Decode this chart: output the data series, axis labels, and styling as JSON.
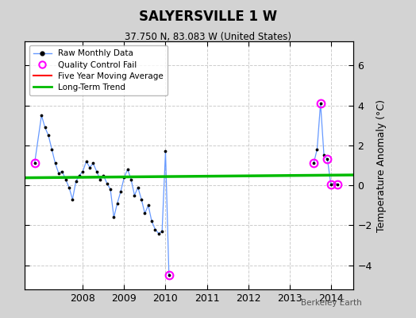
{
  "title": "SALYERSVILLE 1 W",
  "subtitle": "37.750 N, 83.083 W (United States)",
  "ylabel": "Temperature Anomaly (°C)",
  "watermark": "Berkeley Earth",
  "background_color": "#d3d3d3",
  "plot_bg_color": "#ffffff",
  "xlim": [
    2006.6,
    2014.55
  ],
  "ylim": [
    -5.2,
    7.2
  ],
  "yticks": [
    -4,
    -2,
    0,
    2,
    4,
    6
  ],
  "xticks": [
    2008,
    2009,
    2010,
    2011,
    2012,
    2013,
    2014
  ],
  "segment1": {
    "x": [
      2006.833,
      2007.0,
      2007.083,
      2007.167,
      2007.25,
      2007.333,
      2007.417,
      2007.5,
      2007.583,
      2007.667,
      2007.75,
      2007.833,
      2007.917,
      2008.0,
      2008.083,
      2008.167,
      2008.25,
      2008.333,
      2008.417,
      2008.5,
      2008.583,
      2008.667,
      2008.75,
      2008.833,
      2008.917,
      2009.0,
      2009.083,
      2009.167,
      2009.25,
      2009.333,
      2009.417,
      2009.5,
      2009.583,
      2009.667,
      2009.75,
      2009.833,
      2009.917,
      2010.0,
      2010.083
    ],
    "y": [
      1.1,
      3.5,
      2.9,
      2.5,
      1.8,
      1.1,
      0.6,
      0.7,
      0.3,
      -0.1,
      -0.7,
      0.2,
      0.5,
      0.7,
      1.2,
      0.9,
      1.1,
      0.7,
      0.3,
      0.5,
      0.1,
      -0.2,
      -1.6,
      -0.9,
      -0.3,
      0.4,
      0.8,
      0.3,
      -0.5,
      -0.1,
      -0.7,
      -1.4,
      -1.0,
      -1.8,
      -2.2,
      -2.4,
      -2.3,
      1.7,
      -4.5
    ]
  },
  "segment2": {
    "x": [
      2013.583,
      2013.667,
      2013.75,
      2013.833,
      2013.917,
      2014.0,
      2014.083,
      2014.167
    ],
    "y": [
      1.1,
      1.8,
      4.1,
      1.5,
      1.3,
      0.05,
      0.1,
      0.05
    ]
  },
  "qc_fail_points": {
    "x": [
      2006.833,
      2010.083,
      2013.75,
      2013.583,
      2013.917,
      2014.0,
      2014.167
    ],
    "y": [
      1.1,
      -4.5,
      4.1,
      1.1,
      1.3,
      0.05,
      0.05
    ]
  },
  "long_term_trend": {
    "x": [
      2006.6,
      2014.55
    ],
    "y": [
      0.38,
      0.52
    ]
  },
  "line_color": "#6699ff",
  "dot_color": "#000000",
  "qc_color": "#ff00ff",
  "trend_color": "#00bb00",
  "moving_avg_color": "#ff0000"
}
